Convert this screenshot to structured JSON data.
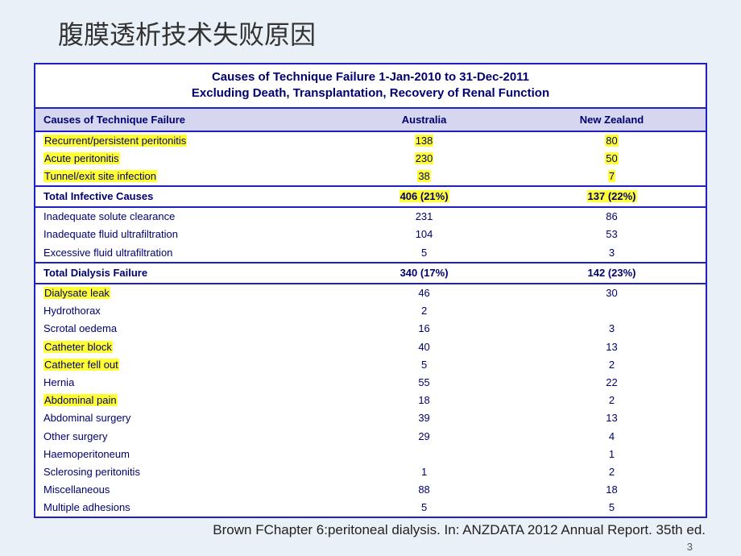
{
  "slide": {
    "title": "腹膜透析技术失败原因",
    "citation": "Brown FChapter 6:peritoneal dialysis. In: ANZDATA 2012 Annual Report. 35th ed.",
    "page_number": "3"
  },
  "table": {
    "type": "table",
    "title_line1": "Causes of Technique Failure  1-Jan-2010 to 31-Dec-2011",
    "title_line2": "Excluding Death, Transplantation, Recovery of Renal Function",
    "columns": [
      "Causes of Technique Failure",
      "Australia",
      "New Zealand"
    ],
    "colors": {
      "border": "#2020c0",
      "header_bg": "#d6d6f0",
      "text": "#000070",
      "highlight": "#ffff33",
      "background": "#ffffff",
      "slide_bg": "#eaf0f7"
    },
    "fonts": {
      "title_size_pt": 15,
      "header_size_pt": 13,
      "body_size_pt": 13,
      "title_weight": "bold"
    },
    "rows": [
      {
        "label": "Recurrent/persistent peritonitis",
        "aus": "138",
        "nz": "80",
        "hl_label": true,
        "hl_aus": true,
        "hl_nz": true
      },
      {
        "label": "Acute peritonitis",
        "aus": "230",
        "nz": "50",
        "hl_label": true,
        "hl_aus": true,
        "hl_nz": true
      },
      {
        "label": "Tunnel/exit site infection",
        "aus": "38",
        "nz": "7",
        "hl_label": true,
        "hl_aus": true,
        "hl_nz": true
      },
      {
        "label": "Total Infective Causes",
        "aus": "406 (21%)",
        "nz": "137 (22%)",
        "subtotal": true,
        "hl_label": false,
        "hl_aus": true,
        "hl_nz": true
      },
      {
        "label": "Inadequate solute clearance",
        "aus": "231",
        "nz": "86"
      },
      {
        "label": "Inadequate fluid ultrafiltration",
        "aus": "104",
        "nz": "53"
      },
      {
        "label": "Excessive fluid ultrafiltration",
        "aus": "5",
        "nz": "3"
      },
      {
        "label": "Total Dialysis Failure",
        "aus": "340 (17%)",
        "nz": "142 (23%)",
        "subtotal": true
      },
      {
        "label": "Dialysate leak",
        "aus": "46",
        "nz": "30",
        "hl_label": true
      },
      {
        "label": "Hydrothorax",
        "aus": "2",
        "nz": ""
      },
      {
        "label": "Scrotal oedema",
        "aus": "16",
        "nz": "3"
      },
      {
        "label": "Catheter block",
        "aus": "40",
        "nz": "13",
        "hl_label": true
      },
      {
        "label": "Catheter fell out",
        "aus": "5",
        "nz": "2",
        "hl_label": true
      },
      {
        "label": "Hernia",
        "aus": "55",
        "nz": "22"
      },
      {
        "label": "Abdominal pain",
        "aus": "18",
        "nz": "2",
        "hl_label": true
      },
      {
        "label": "Abdominal surgery",
        "aus": "39",
        "nz": "13"
      },
      {
        "label": "Other surgery",
        "aus": "29",
        "nz": "4"
      },
      {
        "label": "Haemoperitoneum",
        "aus": "",
        "nz": "1"
      },
      {
        "label": "Sclerosing peritonitis",
        "aus": "1",
        "nz": "2"
      },
      {
        "label": "Miscellaneous",
        "aus": "88",
        "nz": "18"
      },
      {
        "label": "Multiple adhesions",
        "aus": "5",
        "nz": "5"
      }
    ]
  }
}
